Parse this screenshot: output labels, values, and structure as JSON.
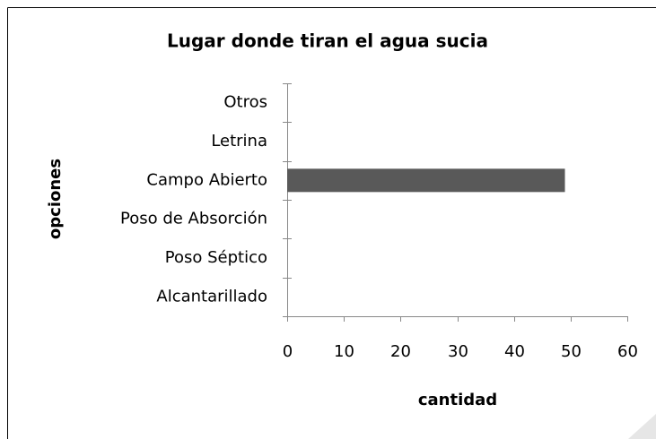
{
  "chart_data": {
    "type": "bar",
    "orientation": "horizontal",
    "title": "Lugar donde tiran el agua sucia",
    "xlabel": "cantidad",
    "ylabel": "opciones",
    "categories": [
      "Alcantarillado",
      "Poso Séptico",
      "Poso de Absorción",
      "Campo Abierto",
      "Letrina",
      "Otros"
    ],
    "values": [
      0,
      0,
      0,
      49,
      0,
      0
    ],
    "color": "#595959",
    "xlim": [
      0,
      60
    ],
    "xticks": [
      0,
      10,
      20,
      30,
      40,
      50,
      60
    ],
    "grid": false
  }
}
